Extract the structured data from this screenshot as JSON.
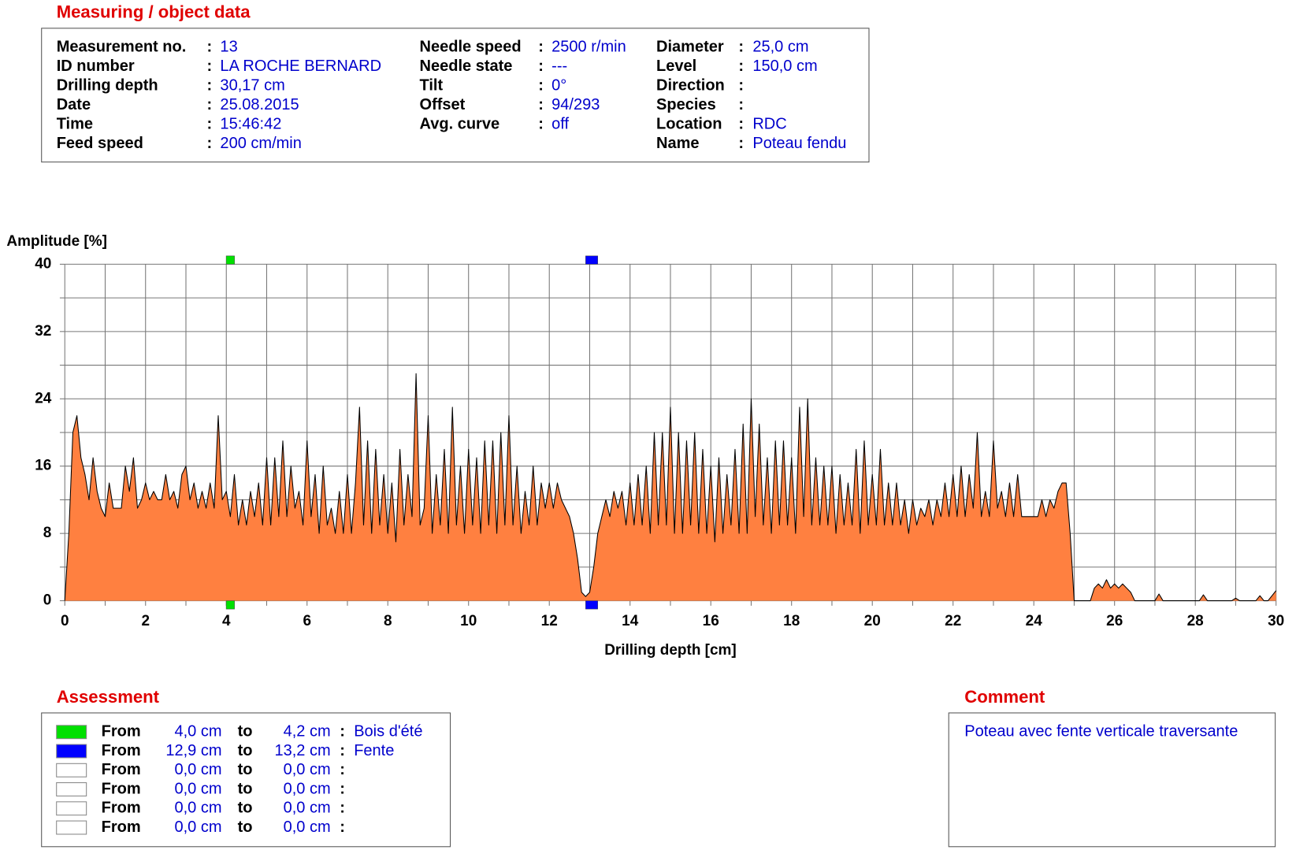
{
  "header": {
    "title": "Measuring / object data",
    "separator": ":",
    "columns": [
      [
        {
          "label": "Measurement no.",
          "value": "13"
        },
        {
          "label": "ID number",
          "value": "LA ROCHE BERNARD"
        },
        {
          "label": "Drilling depth",
          "value": "30,17 cm"
        },
        {
          "label": "Date",
          "value": "25.08.2015"
        },
        {
          "label": "Time",
          "value": "15:46:42"
        },
        {
          "label": "Feed speed",
          "value": "200 cm/min"
        }
      ],
      [
        {
          "label": "Needle speed",
          "value": "2500 r/min"
        },
        {
          "label": "Needle state",
          "value": "---"
        },
        {
          "label": "Tilt",
          "value": "0°"
        },
        {
          "label": "Offset",
          "value": "94/293"
        },
        {
          "label": "Avg. curve",
          "value": "off"
        }
      ],
      [
        {
          "label": "Diameter",
          "value": "25,0 cm"
        },
        {
          "label": "Level",
          "value": "150,0 cm"
        },
        {
          "label": "Direction"
        },
        {
          "label": "Species"
        },
        {
          "label": "Location",
          "value": "RDC"
        },
        {
          "label": "Name",
          "value": "Poteau fendu"
        }
      ]
    ]
  },
  "chart_data": {
    "type": "area",
    "ylabel": "Amplitude [%]",
    "xlabel": "Drilling depth [cm]",
    "color": "#ff8040",
    "line_color": "#000000",
    "grid": true,
    "xlim": [
      0,
      30
    ],
    "ylim": [
      0,
      40
    ],
    "xticks": [
      0,
      2,
      4,
      6,
      8,
      10,
      12,
      14,
      16,
      18,
      20,
      22,
      24,
      26,
      28,
      30
    ],
    "minor_xticks": [
      1,
      3,
      5,
      7,
      9,
      11,
      13,
      15,
      17,
      19,
      21,
      23,
      25,
      27,
      29
    ],
    "yticks": [
      0,
      8,
      16,
      24,
      32,
      40
    ],
    "minor_yticks": [
      4,
      12,
      20,
      28,
      36
    ],
    "x": [
      0,
      0.1,
      0.2,
      0.3,
      0.4,
      0.5,
      0.6,
      0.7,
      0.8,
      0.9,
      1,
      1.1,
      1.2,
      1.3,
      1.4,
      1.5,
      1.6,
      1.7,
      1.8,
      1.9,
      2,
      2.1,
      2.2,
      2.3,
      2.4,
      2.5,
      2.6,
      2.7,
      2.8,
      2.9,
      3,
      3.1,
      3.2,
      3.3,
      3.4,
      3.5,
      3.6,
      3.7,
      3.8,
      3.9,
      4,
      4.1,
      4.2,
      4.3,
      4.4,
      4.5,
      4.6,
      4.7,
      4.8,
      4.9,
      5,
      5.1,
      5.2,
      5.3,
      5.4,
      5.5,
      5.6,
      5.7,
      5.8,
      5.9,
      6,
      6.1,
      6.2,
      6.3,
      6.4,
      6.5,
      6.6,
      6.7,
      6.8,
      6.9,
      7,
      7.1,
      7.2,
      7.3,
      7.4,
      7.5,
      7.6,
      7.7,
      7.8,
      7.9,
      8,
      8.1,
      8.2,
      8.3,
      8.4,
      8.5,
      8.6,
      8.7,
      8.8,
      8.9,
      9,
      9.1,
      9.2,
      9.3,
      9.4,
      9.5,
      9.6,
      9.7,
      9.8,
      9.9,
      10,
      10.1,
      10.2,
      10.3,
      10.4,
      10.5,
      10.6,
      10.7,
      10.8,
      10.9,
      11,
      11.1,
      11.2,
      11.3,
      11.4,
      11.5,
      11.6,
      11.7,
      11.8,
      11.9,
      12,
      12.1,
      12.2,
      12.3,
      12.4,
      12.5,
      12.6,
      12.7,
      12.8,
      12.9,
      13,
      13.1,
      13.2,
      13.3,
      13.4,
      13.5,
      13.6,
      13.7,
      13.8,
      13.9,
      14,
      14.1,
      14.2,
      14.3,
      14.4,
      14.5,
      14.6,
      14.7,
      14.8,
      14.9,
      15,
      15.1,
      15.2,
      15.3,
      15.4,
      15.5,
      15.6,
      15.7,
      15.8,
      15.9,
      16,
      16.1,
      16.2,
      16.3,
      16.4,
      16.5,
      16.6,
      16.7,
      16.8,
      16.9,
      17,
      17.1,
      17.2,
      17.3,
      17.4,
      17.5,
      17.6,
      17.7,
      17.8,
      17.9,
      18,
      18.1,
      18.2,
      18.3,
      18.4,
      18.5,
      18.6,
      18.7,
      18.8,
      18.9,
      19,
      19.1,
      19.2,
      19.3,
      19.4,
      19.5,
      19.6,
      19.7,
      19.8,
      19.9,
      20,
      20.1,
      20.2,
      20.3,
      20.4,
      20.5,
      20.6,
      20.7,
      20.8,
      20.9,
      21,
      21.1,
      21.2,
      21.3,
      21.4,
      21.5,
      21.6,
      21.7,
      21.8,
      21.9,
      22,
      22.1,
      22.2,
      22.3,
      22.4,
      22.5,
      22.6,
      22.7,
      22.8,
      22.9,
      23,
      23.1,
      23.2,
      23.3,
      23.4,
      23.5,
      23.6,
      23.7,
      23.8,
      23.9,
      24,
      24.1,
      24.2,
      24.3,
      24.4,
      24.5,
      24.6,
      24.7,
      24.8,
      24.9,
      25,
      25.1,
      25.2,
      25.3,
      25.4,
      25.5,
      25.6,
      25.7,
      25.8,
      25.9,
      26,
      26.1,
      26.2,
      26.3,
      26.4,
      26.5,
      26.6,
      26.7,
      26.8,
      26.9,
      27,
      27.1,
      27.2,
      27.3,
      27.4,
      27.5,
      27.6,
      27.7,
      27.8,
      27.9,
      28,
      28.1,
      28.2,
      28.3,
      28.4,
      28.5,
      28.6,
      28.7,
      28.8,
      28.9,
      29,
      29.1,
      29.2,
      29.3,
      29.4,
      29.5,
      29.6,
      29.7,
      29.8,
      29.9,
      30
    ],
    "values": [
      0,
      8,
      20,
      22,
      17,
      15,
      12,
      17,
      13,
      11,
      10,
      14,
      11,
      11,
      11,
      16,
      13,
      17,
      11,
      12,
      14,
      12,
      13,
      12,
      12,
      15,
      12,
      13,
      11,
      15,
      16,
      12,
      14,
      11,
      13,
      11,
      14,
      11,
      22,
      12,
      13,
      10,
      15,
      9,
      12,
      9,
      13,
      10,
      14,
      9,
      17,
      9,
      17,
      10,
      19,
      10,
      16,
      11,
      13,
      9,
      19,
      10,
      15,
      8,
      16,
      9,
      11,
      8,
      13,
      8,
      15,
      8,
      14,
      23,
      9,
      19,
      8,
      18,
      9,
      15,
      8,
      14,
      7,
      18,
      9,
      15,
      10,
      27,
      9,
      11,
      22,
      8,
      15,
      9,
      18,
      8,
      23,
      9,
      16,
      8,
      18,
      9,
      17,
      8,
      19,
      9,
      19,
      8,
      20,
      9,
      22,
      9,
      16,
      8,
      13,
      9,
      16,
      9,
      14,
      11,
      14,
      11,
      14,
      12,
      11,
      10,
      8,
      5,
      1,
      0.5,
      1,
      4,
      8,
      10,
      12,
      10,
      13,
      11,
      13,
      9,
      14,
      9,
      15,
      9,
      16,
      8,
      20,
      9,
      20,
      9,
      23,
      8,
      20,
      8,
      19,
      9,
      20,
      8,
      18,
      8,
      16,
      7,
      17,
      8,
      15,
      9,
      18,
      8,
      21,
      8,
      24,
      10,
      21,
      9,
      17,
      8,
      19,
      9,
      19,
      9,
      17,
      8,
      23,
      10,
      24,
      9,
      17,
      9,
      16,
      9,
      16,
      8,
      15,
      9,
      14,
      9,
      18,
      8,
      19,
      9,
      15,
      9,
      18,
      9,
      14,
      9,
      14,
      9,
      12,
      8,
      12,
      9,
      11,
      10,
      12,
      9,
      12,
      10,
      14,
      10,
      15,
      10,
      16,
      10,
      15,
      11,
      20,
      10,
      13,
      10,
      19,
      11,
      13,
      10,
      14,
      10,
      15,
      10,
      10,
      10,
      10,
      10,
      12,
      10,
      12,
      11,
      13,
      14,
      14,
      8,
      0,
      0,
      0,
      0,
      0,
      1.5,
      2,
      1.5,
      2.5,
      1.5,
      2,
      1.5,
      2,
      1.5,
      1,
      0,
      0,
      0,
      0,
      0,
      0,
      0.8,
      0,
      0,
      0,
      0,
      0,
      0,
      0,
      0,
      0,
      0,
      0.7,
      0,
      0,
      0,
      0,
      0,
      0,
      0,
      0.3,
      0,
      0,
      0,
      0,
      0,
      0.6,
      0,
      0,
      0.6,
      1.2
    ]
  },
  "assessment": {
    "title": "Assessment",
    "from_word": "From",
    "to_word": "to",
    "separator": ":",
    "rows": [
      {
        "color": "#00e000",
        "from": 4.0,
        "from_label": "4,0 cm",
        "to": 4.2,
        "to_label": "4,2 cm",
        "note": "Bois d'été"
      },
      {
        "color": "#0000ff",
        "from": 12.9,
        "from_label": "12,9 cm",
        "to": 13.2,
        "to_label": "13,2 cm",
        "note": "Fente"
      },
      {
        "color": "#ffffff",
        "from": 0.0,
        "from_label": "0,0 cm",
        "to": 0.0,
        "to_label": "0,0 cm"
      },
      {
        "color": "#ffffff",
        "from": 0.0,
        "from_label": "0,0 cm",
        "to": 0.0,
        "to_label": "0,0 cm"
      },
      {
        "color": "#ffffff",
        "from": 0.0,
        "from_label": "0,0 cm",
        "to": 0.0,
        "to_label": "0,0 cm"
      },
      {
        "color": "#ffffff",
        "from": 0.0,
        "from_label": "0,0 cm",
        "to": 0.0,
        "to_label": "0,0 cm"
      }
    ]
  },
  "comment": {
    "title": "Comment",
    "text": "Poteau avec fente verticale traversante"
  }
}
